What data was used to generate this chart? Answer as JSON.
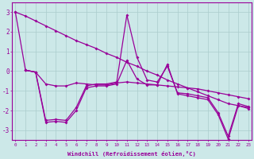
{
  "xlabel": "Windchill (Refroidissement éolien,°C)",
  "bg_color": "#cce8e8",
  "line_color": "#990099",
  "grid_color": "#aacccc",
  "x_min": 0,
  "x_max": 23,
  "y_min": -3.5,
  "y_max": 3.5,
  "yticks": [
    -3,
    -2,
    -1,
    0,
    1,
    2,
    3
  ],
  "xticks": [
    0,
    1,
    2,
    3,
    4,
    5,
    6,
    7,
    8,
    9,
    10,
    11,
    12,
    13,
    14,
    15,
    16,
    17,
    18,
    19,
    20,
    21,
    22,
    23
  ],
  "line1_x": [
    0,
    1,
    2,
    3,
    4,
    5,
    6,
    7,
    8,
    9,
    10,
    11,
    12,
    13,
    14,
    15,
    16,
    17,
    18,
    19,
    20,
    21,
    22,
    23
  ],
  "line1_y": [
    3.0,
    2.8,
    2.55,
    2.3,
    2.05,
    1.8,
    1.55,
    1.35,
    1.15,
    0.9,
    0.7,
    0.45,
    0.25,
    0.0,
    -0.2,
    -0.45,
    -0.65,
    -0.85,
    -1.05,
    -1.25,
    -1.45,
    -1.65,
    -1.75,
    -1.85
  ],
  "line2_x": [
    1,
    2,
    3,
    4,
    5,
    6,
    7,
    8,
    9,
    10,
    11,
    12,
    13,
    14,
    15,
    16,
    17,
    18,
    19,
    20,
    21,
    22,
    23
  ],
  "line2_y": [
    0.05,
    -0.05,
    -2.5,
    -2.45,
    -2.5,
    -1.85,
    -0.75,
    -0.65,
    -0.65,
    -0.55,
    2.85,
    0.7,
    -0.45,
    -0.55,
    0.25,
    -1.1,
    -1.15,
    -1.25,
    -1.35,
    -2.1,
    -3.3,
    -1.65,
    -1.8
  ],
  "line3_x": [
    1,
    2,
    3,
    4,
    5,
    6,
    7,
    8,
    9,
    10,
    11,
    12,
    13,
    14,
    15,
    16,
    17,
    18,
    19,
    20,
    21,
    22,
    23
  ],
  "line3_y": [
    0.05,
    -0.05,
    -2.6,
    -2.55,
    -2.6,
    -2.0,
    -0.85,
    -0.75,
    -0.75,
    -0.65,
    0.55,
    -0.4,
    -0.7,
    -0.7,
    0.35,
    -1.15,
    -1.25,
    -1.35,
    -1.45,
    -2.2,
    -3.45,
    -1.75,
    -1.9
  ],
  "line4_x": [
    0,
    1,
    2,
    3,
    4,
    5,
    6,
    7,
    8,
    9,
    10,
    11,
    12,
    13,
    14,
    15,
    16,
    17,
    18,
    19,
    20,
    21,
    22,
    23
  ],
  "line4_y": [
    3.0,
    0.05,
    -0.05,
    -0.65,
    -0.75,
    -0.75,
    -0.6,
    -0.65,
    -0.7,
    -0.7,
    -0.6,
    -0.55,
    -0.6,
    -0.65,
    -0.7,
    -0.75,
    -0.8,
    -0.85,
    -0.9,
    -1.0,
    -1.1,
    -1.2,
    -1.3,
    -1.4
  ]
}
